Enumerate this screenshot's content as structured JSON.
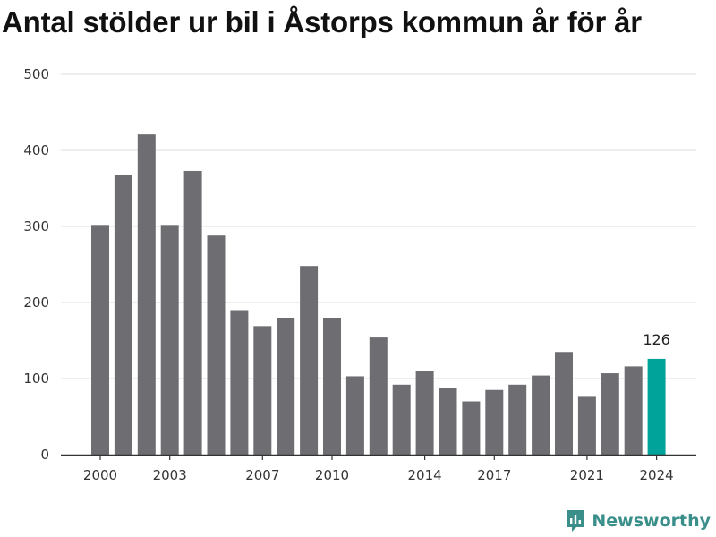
{
  "chart_data": {
    "type": "bar",
    "title": "Antal stölder ur bil i Åstorps kommun år för år",
    "xlabel": "",
    "ylabel": "",
    "ylim": [
      0,
      500
    ],
    "yticks": [
      0,
      100,
      200,
      300,
      400,
      500
    ],
    "xtick_labels": [
      "2000",
      "2003",
      "2007",
      "2010",
      "2014",
      "2017",
      "2021",
      "2024"
    ],
    "categories": [
      "2000",
      "2001",
      "2002",
      "2003",
      "2004",
      "2005",
      "2006",
      "2007",
      "2008",
      "2009",
      "2010",
      "2011",
      "2012",
      "2013",
      "2014",
      "2015",
      "2016",
      "2017",
      "2018",
      "2019",
      "2020",
      "2021",
      "2022",
      "2023",
      "2024"
    ],
    "values": [
      302,
      368,
      421,
      302,
      373,
      288,
      190,
      169,
      180,
      248,
      180,
      103,
      154,
      92,
      110,
      88,
      70,
      85,
      92,
      104,
      135,
      76,
      107,
      116,
      126
    ],
    "highlight_index": 24,
    "highlight_label": "126",
    "bar_color": "#6e6e72",
    "highlight_color": "#00a39a",
    "grid": true
  },
  "brand": {
    "name": "Newsworthy",
    "icon": "bar-chart-logo-icon",
    "color": "#3a8f8a"
  }
}
